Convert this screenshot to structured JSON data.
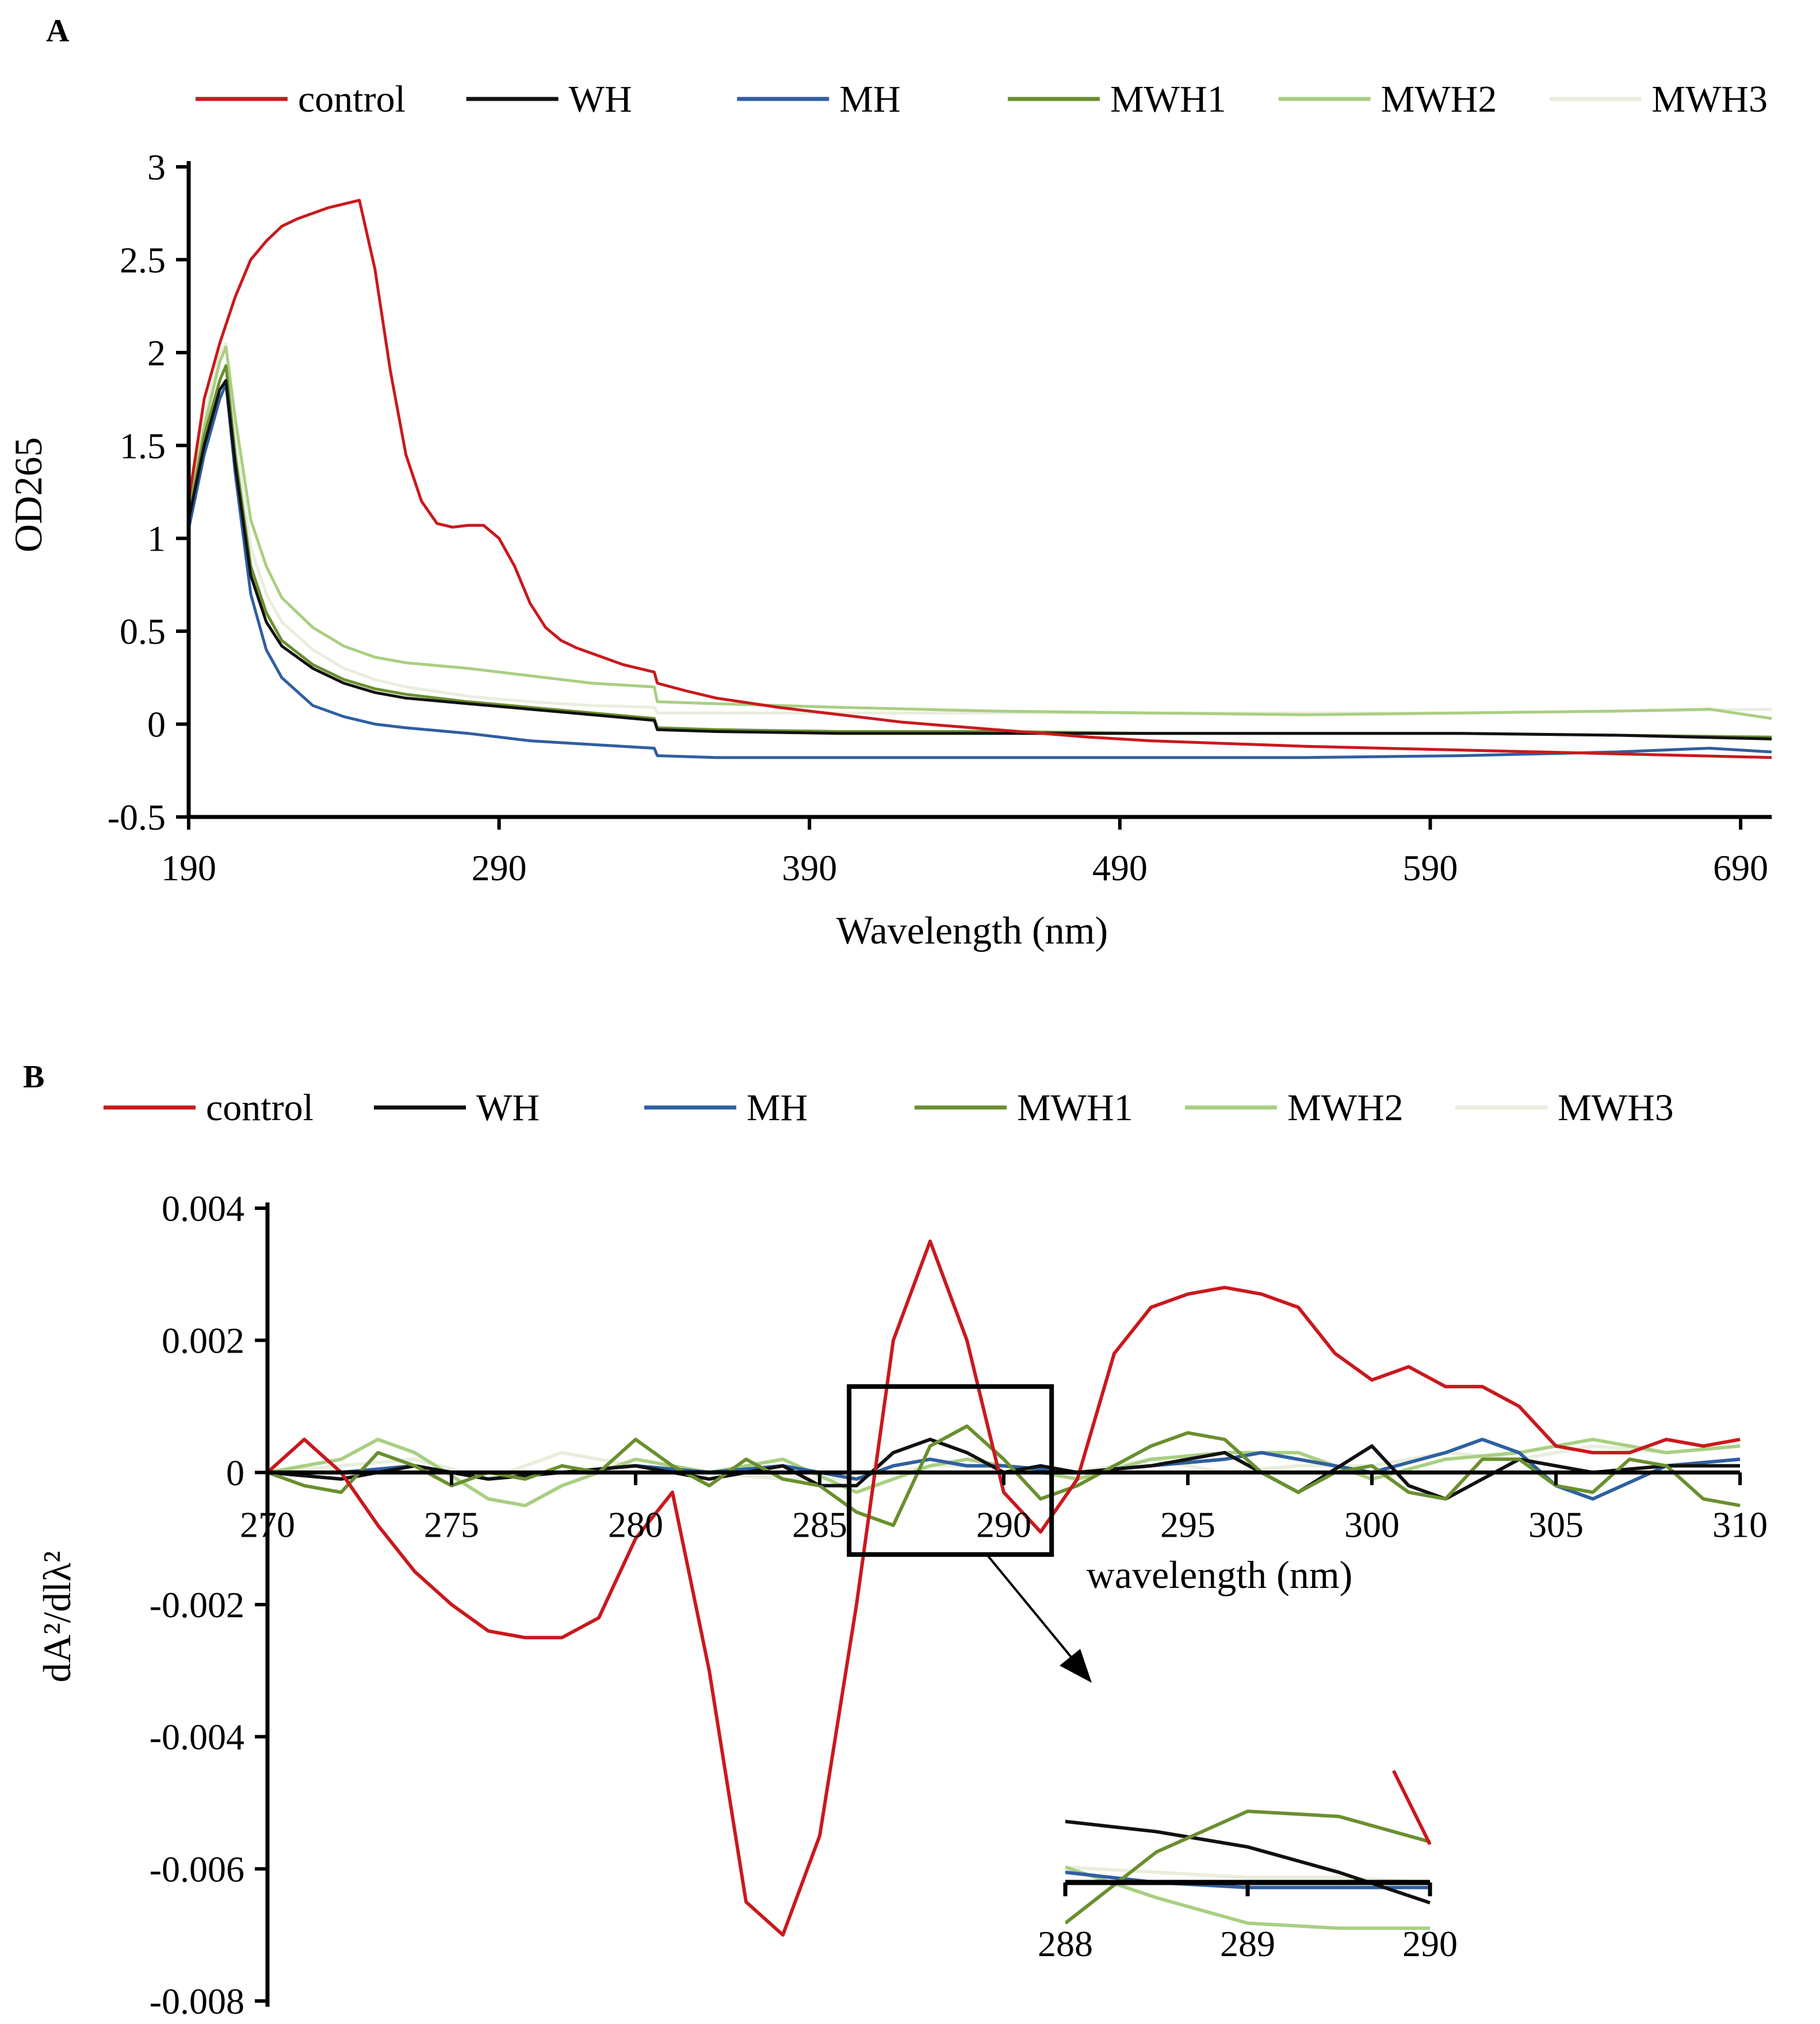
{
  "colors": {
    "control": "#c9191e",
    "WH": "#111111",
    "MH": "#2f5fa0",
    "MWH1": "#6a8f2e",
    "MWH2": "#a9cf82",
    "MWH3": "#e8eedc"
  },
  "chart_data": [
    {
      "panel": "A",
      "type": "line",
      "xlabel": "Wavelength (nm)",
      "ylabel": "OD265",
      "xlim": [
        190,
        700
      ],
      "ylim": [
        -0.5,
        3
      ],
      "xticks": [
        "190",
        "290",
        "390",
        "490",
        "590",
        "690"
      ],
      "yticks": [
        "3",
        "2.5",
        "2",
        "1.5",
        "1",
        "0.5",
        "0",
        "-0.5"
      ],
      "legend": [
        "control",
        "WH",
        "MH",
        "MWH1",
        "MWH2",
        "MWH3"
      ],
      "series": [
        {
          "name": "control",
          "x": [
            190,
            195,
            200,
            205,
            210,
            215,
            220,
            225,
            230,
            235,
            240,
            245,
            250,
            255,
            260,
            265,
            270,
            275,
            280,
            285,
            290,
            295,
            300,
            305,
            310,
            315,
            320,
            330,
            340,
            341,
            350,
            360,
            380,
            400,
            420,
            450,
            480,
            500,
            550,
            600,
            650,
            700
          ],
          "y": [
            1.2,
            1.75,
            2.05,
            2.3,
            2.5,
            2.6,
            2.68,
            2.72,
            2.75,
            2.78,
            2.8,
            2.82,
            2.45,
            1.9,
            1.45,
            1.2,
            1.08,
            1.06,
            1.07,
            1.07,
            1.0,
            0.85,
            0.65,
            0.52,
            0.45,
            0.41,
            0.38,
            0.32,
            0.28,
            0.22,
            0.18,
            0.14,
            0.09,
            0.05,
            0.01,
            -0.03,
            -0.07,
            -0.09,
            -0.12,
            -0.14,
            -0.16,
            -0.18
          ]
        },
        {
          "name": "WH",
          "x": [
            190,
            195,
            200,
            202,
            205,
            210,
            215,
            220,
            230,
            240,
            250,
            260,
            280,
            300,
            320,
            340,
            341,
            360,
            400,
            450,
            500,
            550,
            600,
            650,
            700
          ],
          "y": [
            1.1,
            1.5,
            1.8,
            1.85,
            1.4,
            0.8,
            0.55,
            0.42,
            0.3,
            0.22,
            0.17,
            0.14,
            0.11,
            0.08,
            0.05,
            0.02,
            -0.03,
            -0.04,
            -0.05,
            -0.05,
            -0.05,
            -0.05,
            -0.05,
            -0.06,
            -0.08
          ]
        },
        {
          "name": "MH",
          "x": [
            190,
            195,
            200,
            202,
            205,
            210,
            215,
            220,
            230,
            240,
            250,
            260,
            280,
            300,
            320,
            340,
            341,
            360,
            400,
            450,
            500,
            550,
            600,
            650,
            680,
            700
          ],
          "y": [
            1.05,
            1.45,
            1.75,
            1.83,
            1.35,
            0.7,
            0.4,
            0.25,
            0.1,
            0.04,
            0.0,
            -0.02,
            -0.05,
            -0.09,
            -0.11,
            -0.13,
            -0.17,
            -0.18,
            -0.18,
            -0.18,
            -0.18,
            -0.18,
            -0.17,
            -0.15,
            -0.13,
            -0.15
          ]
        },
        {
          "name": "MWH1",
          "x": [
            190,
            195,
            200,
            202,
            205,
            210,
            215,
            220,
            230,
            240,
            250,
            260,
            280,
            300,
            320,
            340,
            341,
            360,
            400,
            450,
            500,
            550,
            600,
            650,
            700
          ],
          "y": [
            1.12,
            1.55,
            1.85,
            1.93,
            1.45,
            0.85,
            0.6,
            0.45,
            0.32,
            0.24,
            0.19,
            0.16,
            0.12,
            0.09,
            0.06,
            0.03,
            -0.02,
            -0.03,
            -0.04,
            -0.04,
            -0.05,
            -0.05,
            -0.05,
            -0.06,
            -0.07
          ]
        },
        {
          "name": "MWH2",
          "x": [
            190,
            195,
            200,
            202,
            205,
            210,
            215,
            220,
            230,
            240,
            250,
            260,
            280,
            300,
            320,
            340,
            341,
            360,
            400,
            450,
            500,
            550,
            600,
            650,
            680,
            700
          ],
          "y": [
            1.15,
            1.6,
            1.95,
            2.03,
            1.65,
            1.1,
            0.85,
            0.68,
            0.52,
            0.42,
            0.36,
            0.33,
            0.3,
            0.26,
            0.22,
            0.2,
            0.12,
            0.11,
            0.09,
            0.07,
            0.06,
            0.05,
            0.06,
            0.07,
            0.08,
            0.03
          ]
        },
        {
          "name": "MWH3",
          "x": [
            190,
            195,
            200,
            202,
            205,
            210,
            215,
            220,
            230,
            240,
            250,
            260,
            280,
            300,
            320,
            340,
            341,
            360,
            400,
            450,
            500,
            550,
            600,
            650,
            700
          ],
          "y": [
            1.18,
            1.65,
            2.0,
            2.05,
            1.55,
            0.95,
            0.7,
            0.55,
            0.4,
            0.3,
            0.24,
            0.2,
            0.15,
            0.12,
            0.1,
            0.09,
            0.06,
            0.06,
            0.06,
            0.06,
            0.06,
            0.06,
            0.06,
            0.07,
            0.08
          ]
        }
      ]
    },
    {
      "panel": "B",
      "type": "line",
      "xlabel": "wavelength (nm)",
      "ylabel": "dA²/dlλ²",
      "xlim": [
        270,
        310
      ],
      "ylim": [
        -0.008,
        0.004
      ],
      "xticks": [
        "270",
        "275",
        "280",
        "285",
        "290",
        "295",
        "300",
        "305",
        "310"
      ],
      "yticks": [
        "0.004",
        "0.002",
        "0",
        "-0.002",
        "-0.004",
        "-0.006",
        "-0.008"
      ],
      "legend": [
        "control",
        "WH",
        "MH",
        "MWH1",
        "MWH2",
        "MWH3"
      ],
      "highlight_box_x": [
        285.8,
        291.3
      ],
      "series": [
        {
          "name": "control",
          "x": [
            270,
            271,
            272,
            273,
            274,
            275,
            276,
            277,
            278,
            279,
            280,
            281,
            282,
            283,
            284,
            285,
            286,
            287,
            288,
            289,
            290,
            291,
            292,
            293,
            294,
            295,
            296,
            297,
            298,
            299,
            300,
            301,
            302,
            303,
            304,
            305,
            306,
            307,
            308,
            309,
            310
          ],
          "y": [
            0.0,
            0.0005,
            0.0,
            -0.0008,
            -0.0015,
            -0.002,
            -0.0024,
            -0.0025,
            -0.0025,
            -0.0022,
            -0.001,
            -0.0003,
            -0.003,
            -0.0065,
            -0.007,
            -0.0055,
            -0.002,
            0.002,
            0.0035,
            0.002,
            -0.0003,
            -0.0009,
            -0.0001,
            0.0018,
            0.0025,
            0.0027,
            0.0028,
            0.0027,
            0.0025,
            0.0018,
            0.0014,
            0.0016,
            0.0013,
            0.0013,
            0.001,
            0.0004,
            0.0003,
            0.0003,
            0.0005,
            0.0004,
            0.0005
          ]
        },
        {
          "name": "WH",
          "x": [
            270,
            272,
            274,
            276,
            278,
            280,
            282,
            284,
            285,
            286,
            287,
            288,
            289,
            290,
            291,
            292,
            294,
            296,
            298,
            300,
            301,
            302,
            304,
            306,
            308,
            310
          ],
          "y": [
            0.0,
            -0.0001,
            0.0001,
            -0.0001,
            0.0,
            0.0001,
            -0.0001,
            0.0001,
            -0.0002,
            -0.0002,
            0.0003,
            0.0005,
            0.0003,
            0.0,
            0.0001,
            0.0,
            0.0001,
            0.0003,
            -0.0003,
            0.0004,
            -0.0002,
            -0.0004,
            0.0002,
            0.0,
            0.0001,
            0.0001
          ]
        },
        {
          "name": "MH",
          "x": [
            270,
            272,
            274,
            276,
            278,
            280,
            282,
            284,
            286,
            287,
            288,
            289,
            290,
            292,
            294,
            296,
            297,
            298,
            300,
            302,
            303,
            304,
            305,
            306,
            308,
            310
          ],
          "y": [
            0.0,
            0.0,
            0.0001,
            -0.0001,
            0.0,
            0.0001,
            0.0,
            0.0001,
            -0.0001,
            0.0001,
            0.0002,
            0.0001,
            0.0001,
            0.0,
            0.0001,
            0.0002,
            0.0003,
            0.0002,
            0.0,
            0.0003,
            0.0005,
            0.0003,
            -0.0002,
            -0.0004,
            0.0001,
            0.0002
          ]
        },
        {
          "name": "MWH1",
          "x": [
            270,
            271,
            272,
            273,
            274,
            275,
            276,
            277,
            278,
            279,
            280,
            281,
            282,
            283,
            284,
            285,
            286,
            287,
            288,
            289,
            290,
            291,
            292,
            293,
            294,
            295,
            296,
            297,
            298,
            299,
            300,
            301,
            302,
            303,
            304,
            305,
            306,
            307,
            308,
            309,
            310
          ],
          "y": [
            0.0,
            -0.0002,
            -0.0003,
            0.0003,
            0.0001,
            -0.0002,
            0.0,
            -0.0001,
            0.0001,
            0.0,
            0.0005,
            0.0001,
            -0.0002,
            0.0002,
            -0.0001,
            -0.0002,
            -0.0006,
            -0.0008,
            0.0004,
            0.0007,
            0.0002,
            -0.0004,
            -0.0002,
            0.0001,
            0.0004,
            0.0006,
            0.0005,
            0.0,
            -0.0003,
            0.0,
            0.0001,
            -0.0003,
            -0.0004,
            0.0002,
            0.0002,
            -0.0002,
            -0.0003,
            0.0002,
            0.0001,
            -0.0004,
            -0.0005
          ]
        },
        {
          "name": "MWH2",
          "x": [
            270,
            272,
            273,
            274,
            276,
            277,
            278,
            280,
            282,
            284,
            286,
            287,
            288,
            289,
            290,
            292,
            294,
            296,
            298,
            300,
            302,
            304,
            306,
            308,
            310
          ],
          "y": [
            0.0,
            0.0002,
            0.0005,
            0.0003,
            -0.0004,
            -0.0005,
            -0.0002,
            0.0002,
            0.0,
            0.0002,
            -0.0003,
            -0.0001,
            0.0001,
            0.0002,
            0.0001,
            -0.0001,
            0.0002,
            0.0003,
            0.0003,
            -0.0001,
            0.0002,
            0.0003,
            0.0005,
            0.0003,
            0.0004
          ]
        },
        {
          "name": "MWH3",
          "x": [
            270,
            272,
            274,
            276,
            278,
            280,
            282,
            284,
            286,
            288,
            289,
            290,
            292,
            294,
            296,
            298,
            300,
            302,
            304,
            306,
            308,
            310
          ],
          "y": [
            0.0,
            0.0001,
            0.0002,
            -0.0001,
            0.0003,
            0.0001,
            0.0,
            -0.0001,
            -0.0001,
            0.0001,
            0.0001,
            0.0001,
            0.0,
            0.0002,
            0.0,
            0.0001,
            0.0001,
            0.0003,
            0.0002,
            0.0004,
            0.0003,
            0.0004
          ]
        }
      ]
    },
    {
      "panel": "B-inset",
      "type": "line",
      "xlim": [
        288,
        290
      ],
      "xticks": [
        "288",
        "289",
        "290"
      ],
      "ylim": [
        -0.0012,
        0.0024
      ],
      "series": [
        {
          "name": "control",
          "x": [
            289.8,
            290
          ],
          "y": [
            0.0022,
            0.00075
          ]
        },
        {
          "name": "WH",
          "x": [
            288,
            288.5,
            289,
            289.5,
            290
          ],
          "y": [
            0.0012,
            0.001,
            0.0007,
            0.0002,
            -0.0004
          ]
        },
        {
          "name": "MH",
          "x": [
            288,
            288.5,
            289,
            289.5,
            290
          ],
          "y": [
            0.0002,
            0.0,
            -0.0001,
            -0.0001,
            -0.0001
          ]
        },
        {
          "name": "MWH1",
          "x": [
            288,
            288.5,
            289,
            289.5,
            290
          ],
          "y": [
            -0.0008,
            0.0006,
            0.0014,
            0.0013,
            0.0008
          ]
        },
        {
          "name": "MWH2",
          "x": [
            288,
            288.5,
            289,
            289.5,
            290
          ],
          "y": [
            0.0003,
            -0.0003,
            -0.0008,
            -0.0009,
            -0.0009
          ]
        },
        {
          "name": "MWH3",
          "x": [
            288,
            288.5,
            289,
            289.5,
            290
          ],
          "y": [
            0.0003,
            0.0002,
            0.0001,
            0.0001,
            0.0
          ]
        }
      ]
    }
  ]
}
